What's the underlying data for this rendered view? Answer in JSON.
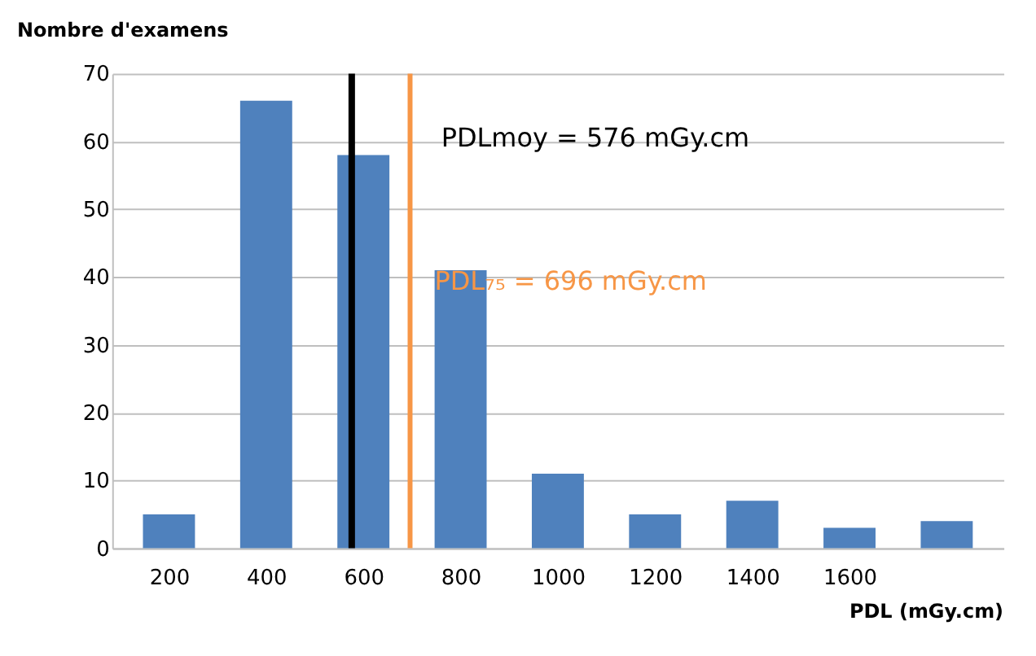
{
  "chart_data": {
    "type": "bar",
    "ylabel": "Nombre d'examens",
    "xlabel": "PDL (mGy.cm)",
    "x": [
      200,
      400,
      600,
      800,
      1000,
      1200,
      1400,
      1600,
      1800
    ],
    "values": [
      5,
      66,
      58,
      41,
      11,
      5,
      7,
      3,
      4
    ],
    "color": "#4f81bd",
    "xlim": [
      100,
      1900
    ],
    "xticks": [
      200,
      400,
      600,
      800,
      1000,
      1200,
      1400,
      1600
    ],
    "ylim": [
      0,
      70
    ],
    "yticks": [
      0,
      10,
      20,
      30,
      40,
      50,
      60,
      70
    ],
    "grid": "y",
    "ref_lines": [
      {
        "axis": "x",
        "value": 576,
        "label": "PDLmoy = 576 mGy.cm",
        "color": "#000000"
      },
      {
        "axis": "x",
        "value": 696,
        "label": "PDL₇₅ = 696 mGy.cm",
        "color": "#f79646"
      }
    ]
  }
}
